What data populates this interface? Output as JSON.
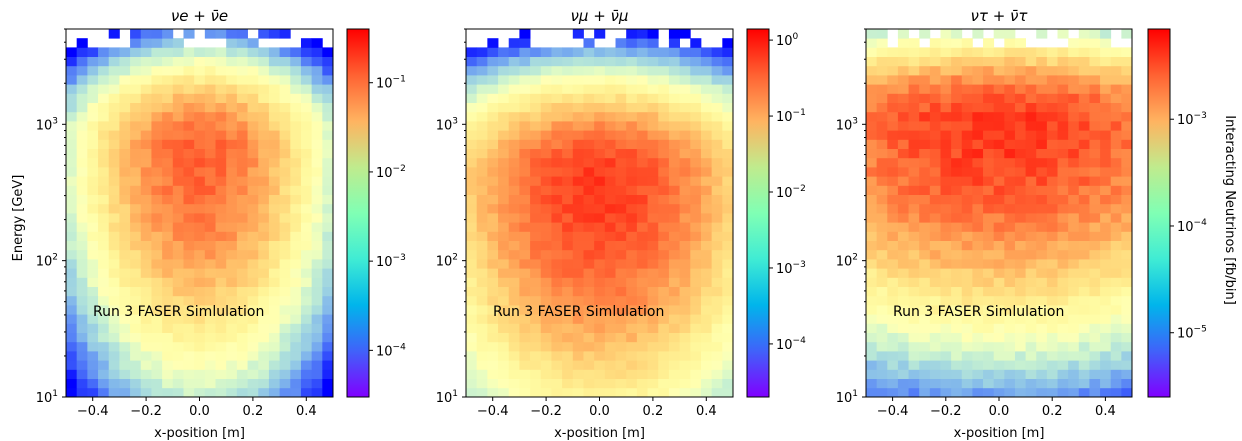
{
  "figure": {
    "ylabel": "Energy [GeV]",
    "colorbar_label": "Interacting Neutrinos [fb/bin]"
  },
  "chart_data": [
    {
      "type": "heatmap",
      "title": "νe + ν̄e",
      "annotation": "Run 3 FASER Simlulation",
      "xlabel": "x-position [m]",
      "ylabel": "Energy [GeV]",
      "xlim": [
        -0.5,
        0.5
      ],
      "ylim": [
        10,
        5000
      ],
      "yscale": "log",
      "xticks": [
        "−0.4",
        "−0.2",
        "0.0",
        "0.2",
        "0.4"
      ],
      "xtick_values": [
        -0.4,
        -0.2,
        0.0,
        0.2,
        0.4
      ],
      "yticks": [
        {
          "base": "10",
          "exp": "1",
          "value": 10
        },
        {
          "base": "10",
          "exp": "2",
          "value": 100
        },
        {
          "base": "10",
          "exp": "3",
          "value": 1000
        }
      ],
      "colorbar": {
        "scale": "log",
        "range": [
          3e-05,
          0.4
        ],
        "colormap": "rainbow",
        "ticks": [
          {
            "base": "10",
            "exp": "−4",
            "value": 0.0001
          },
          {
            "base": "10",
            "exp": "−3",
            "value": 0.001
          },
          {
            "base": "10",
            "exp": "−2",
            "value": 0.01
          },
          {
            "base": "10",
            "exp": "−1",
            "value": 0.1
          }
        ]
      },
      "peak_x": 0.0,
      "peak_log10E": 2.8,
      "peak_value": 0.12,
      "sigma_x": 0.2
    },
    {
      "type": "heatmap",
      "title": "νμ + ν̄μ",
      "annotation": "Run 3 FASER Simlulation",
      "xlabel": "x-position [m]",
      "ylabel": "",
      "xlim": [
        -0.5,
        0.5
      ],
      "ylim": [
        10,
        5000
      ],
      "yscale": "log",
      "xticks": [
        "−0.4",
        "−0.2",
        "0.0",
        "0.2",
        "0.4"
      ],
      "xtick_values": [
        -0.4,
        -0.2,
        0.0,
        0.2,
        0.4
      ],
      "yticks": [
        {
          "base": "10",
          "exp": "1",
          "value": 10
        },
        {
          "base": "10",
          "exp": "2",
          "value": 100
        },
        {
          "base": "10",
          "exp": "3",
          "value": 1000
        }
      ],
      "colorbar": {
        "scale": "log",
        "range": [
          2e-05,
          1.4
        ],
        "colormap": "rainbow",
        "ticks": [
          {
            "base": "10",
            "exp": "−4",
            "value": 0.0001
          },
          {
            "base": "10",
            "exp": "−3",
            "value": 0.001
          },
          {
            "base": "10",
            "exp": "−2",
            "value": 0.01
          },
          {
            "base": "10",
            "exp": "−1",
            "value": 0.1
          },
          {
            "base": "10",
            "exp": "0",
            "value": 1
          }
        ]
      },
      "peak_x": 0.0,
      "peak_log10E": 2.6,
      "peak_value": 0.6,
      "sigma_x": 0.25
    },
    {
      "type": "heatmap",
      "title": "ντ + ν̄τ",
      "annotation": "Run 3 FASER Simlulation",
      "xlabel": "x-position [m]",
      "ylabel": "",
      "xlim": [
        -0.5,
        0.5
      ],
      "ylim": [
        10,
        5000
      ],
      "yscale": "log",
      "xticks": [
        "−0.4",
        "−0.2",
        "0.0",
        "0.2",
        "0.4"
      ],
      "xtick_values": [
        -0.4,
        -0.2,
        0.0,
        0.2,
        0.4
      ],
      "yticks": [
        {
          "base": "10",
          "exp": "1",
          "value": 10
        },
        {
          "base": "10",
          "exp": "2",
          "value": 100
        },
        {
          "base": "10",
          "exp": "3",
          "value": 1000
        }
      ],
      "colorbar": {
        "scale": "log",
        "range": [
          2.5e-06,
          0.007
        ],
        "colormap": "rainbow",
        "label": "Interacting Neutrinos [fb/bin]",
        "ticks": [
          {
            "base": "10",
            "exp": "−5",
            "value": 1e-05
          },
          {
            "base": "10",
            "exp": "−4",
            "value": 0.0001
          },
          {
            "base": "10",
            "exp": "−3",
            "value": 0.001
          }
        ]
      },
      "peak_x": 0.0,
      "peak_log10E": 3.0,
      "peak_value": 0.004,
      "sigma_x": 0.5
    }
  ]
}
